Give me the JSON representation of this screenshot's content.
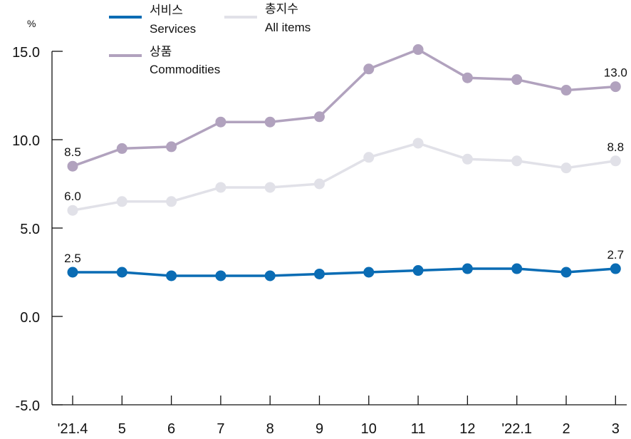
{
  "chart_data": {
    "type": "line",
    "unit": "%",
    "categories": [
      "'21.4",
      "5",
      "6",
      "7",
      "8",
      "9",
      "10",
      "11",
      "12",
      "'22.1",
      "2",
      "3"
    ],
    "ylim": [
      -5.0,
      15.0
    ],
    "yticks": [
      "15.0",
      "10.0",
      "5.0",
      "0.0",
      "-5.0"
    ],
    "grid": false,
    "legend_position": "top-left",
    "series": [
      {
        "key": "services",
        "name_ko": "서비스",
        "name_en": "Services",
        "color": "#0a6cb4",
        "values": [
          2.5,
          2.5,
          2.3,
          2.3,
          2.3,
          2.4,
          2.5,
          2.6,
          2.7,
          2.7,
          2.5,
          2.7
        ],
        "labels": [
          {
            "index": 0,
            "text": "2.5"
          },
          {
            "index": 11,
            "text": "2.7"
          }
        ]
      },
      {
        "key": "all_items",
        "name_ko": "총지수",
        "name_en": "All items",
        "color": "#e1e1e8",
        "values": [
          6.0,
          6.5,
          6.5,
          7.3,
          7.3,
          7.5,
          9.0,
          9.8,
          8.9,
          8.8,
          8.4,
          8.8
        ],
        "labels": [
          {
            "index": 0,
            "text": "6.0"
          },
          {
            "index": 11,
            "text": "8.8"
          }
        ]
      },
      {
        "key": "commodities",
        "name_ko": "상품",
        "name_en": "Commodities",
        "color": "#b1a2be",
        "values": [
          8.5,
          9.5,
          9.6,
          11.0,
          11.0,
          11.3,
          14.0,
          15.1,
          13.5,
          13.4,
          12.8,
          13.0
        ],
        "labels": [
          {
            "index": 0,
            "text": "8.5"
          },
          {
            "index": 11,
            "text": "13.0"
          }
        ]
      }
    ]
  }
}
